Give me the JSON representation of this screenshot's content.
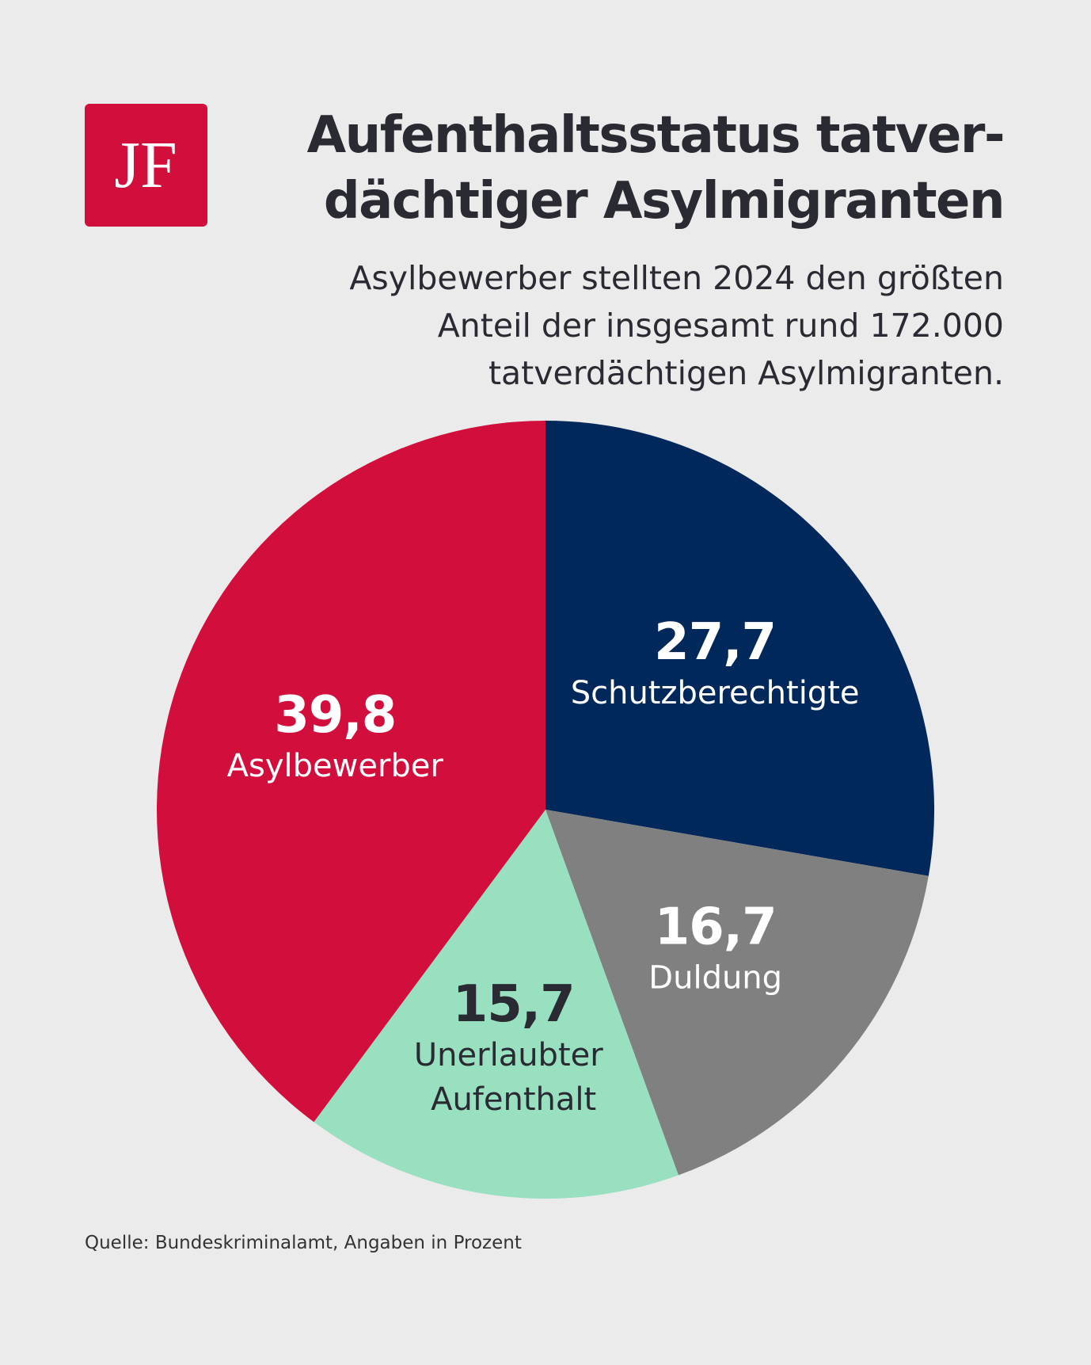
{
  "logo": "JF",
  "chart_data": {
    "type": "pie",
    "title": [
      "Aufenthaltsstatus tatver-",
      "dächtiger Asylmigranten"
    ],
    "subtitle": [
      "Asylbewerber stellten 2024 den größten",
      "Anteil der insgesamt rund 172.000",
      "tatverdächtigen Asylmigranten."
    ],
    "categories": [
      "Schutzberechtigte",
      "Duldung",
      "Unerlaubter Aufenthalt",
      "Asylbewerber"
    ],
    "values": [
      27.7,
      16.7,
      15.7,
      39.8
    ],
    "value_labels": [
      "27,7",
      "16,7",
      "15,7",
      "39,8"
    ],
    "colors": [
      "#00285a",
      "#808080",
      "#98e0c0",
      "#d20f3c"
    ],
    "source": "Quelle: Bundeskriminalamt, Angaben in Prozent"
  }
}
